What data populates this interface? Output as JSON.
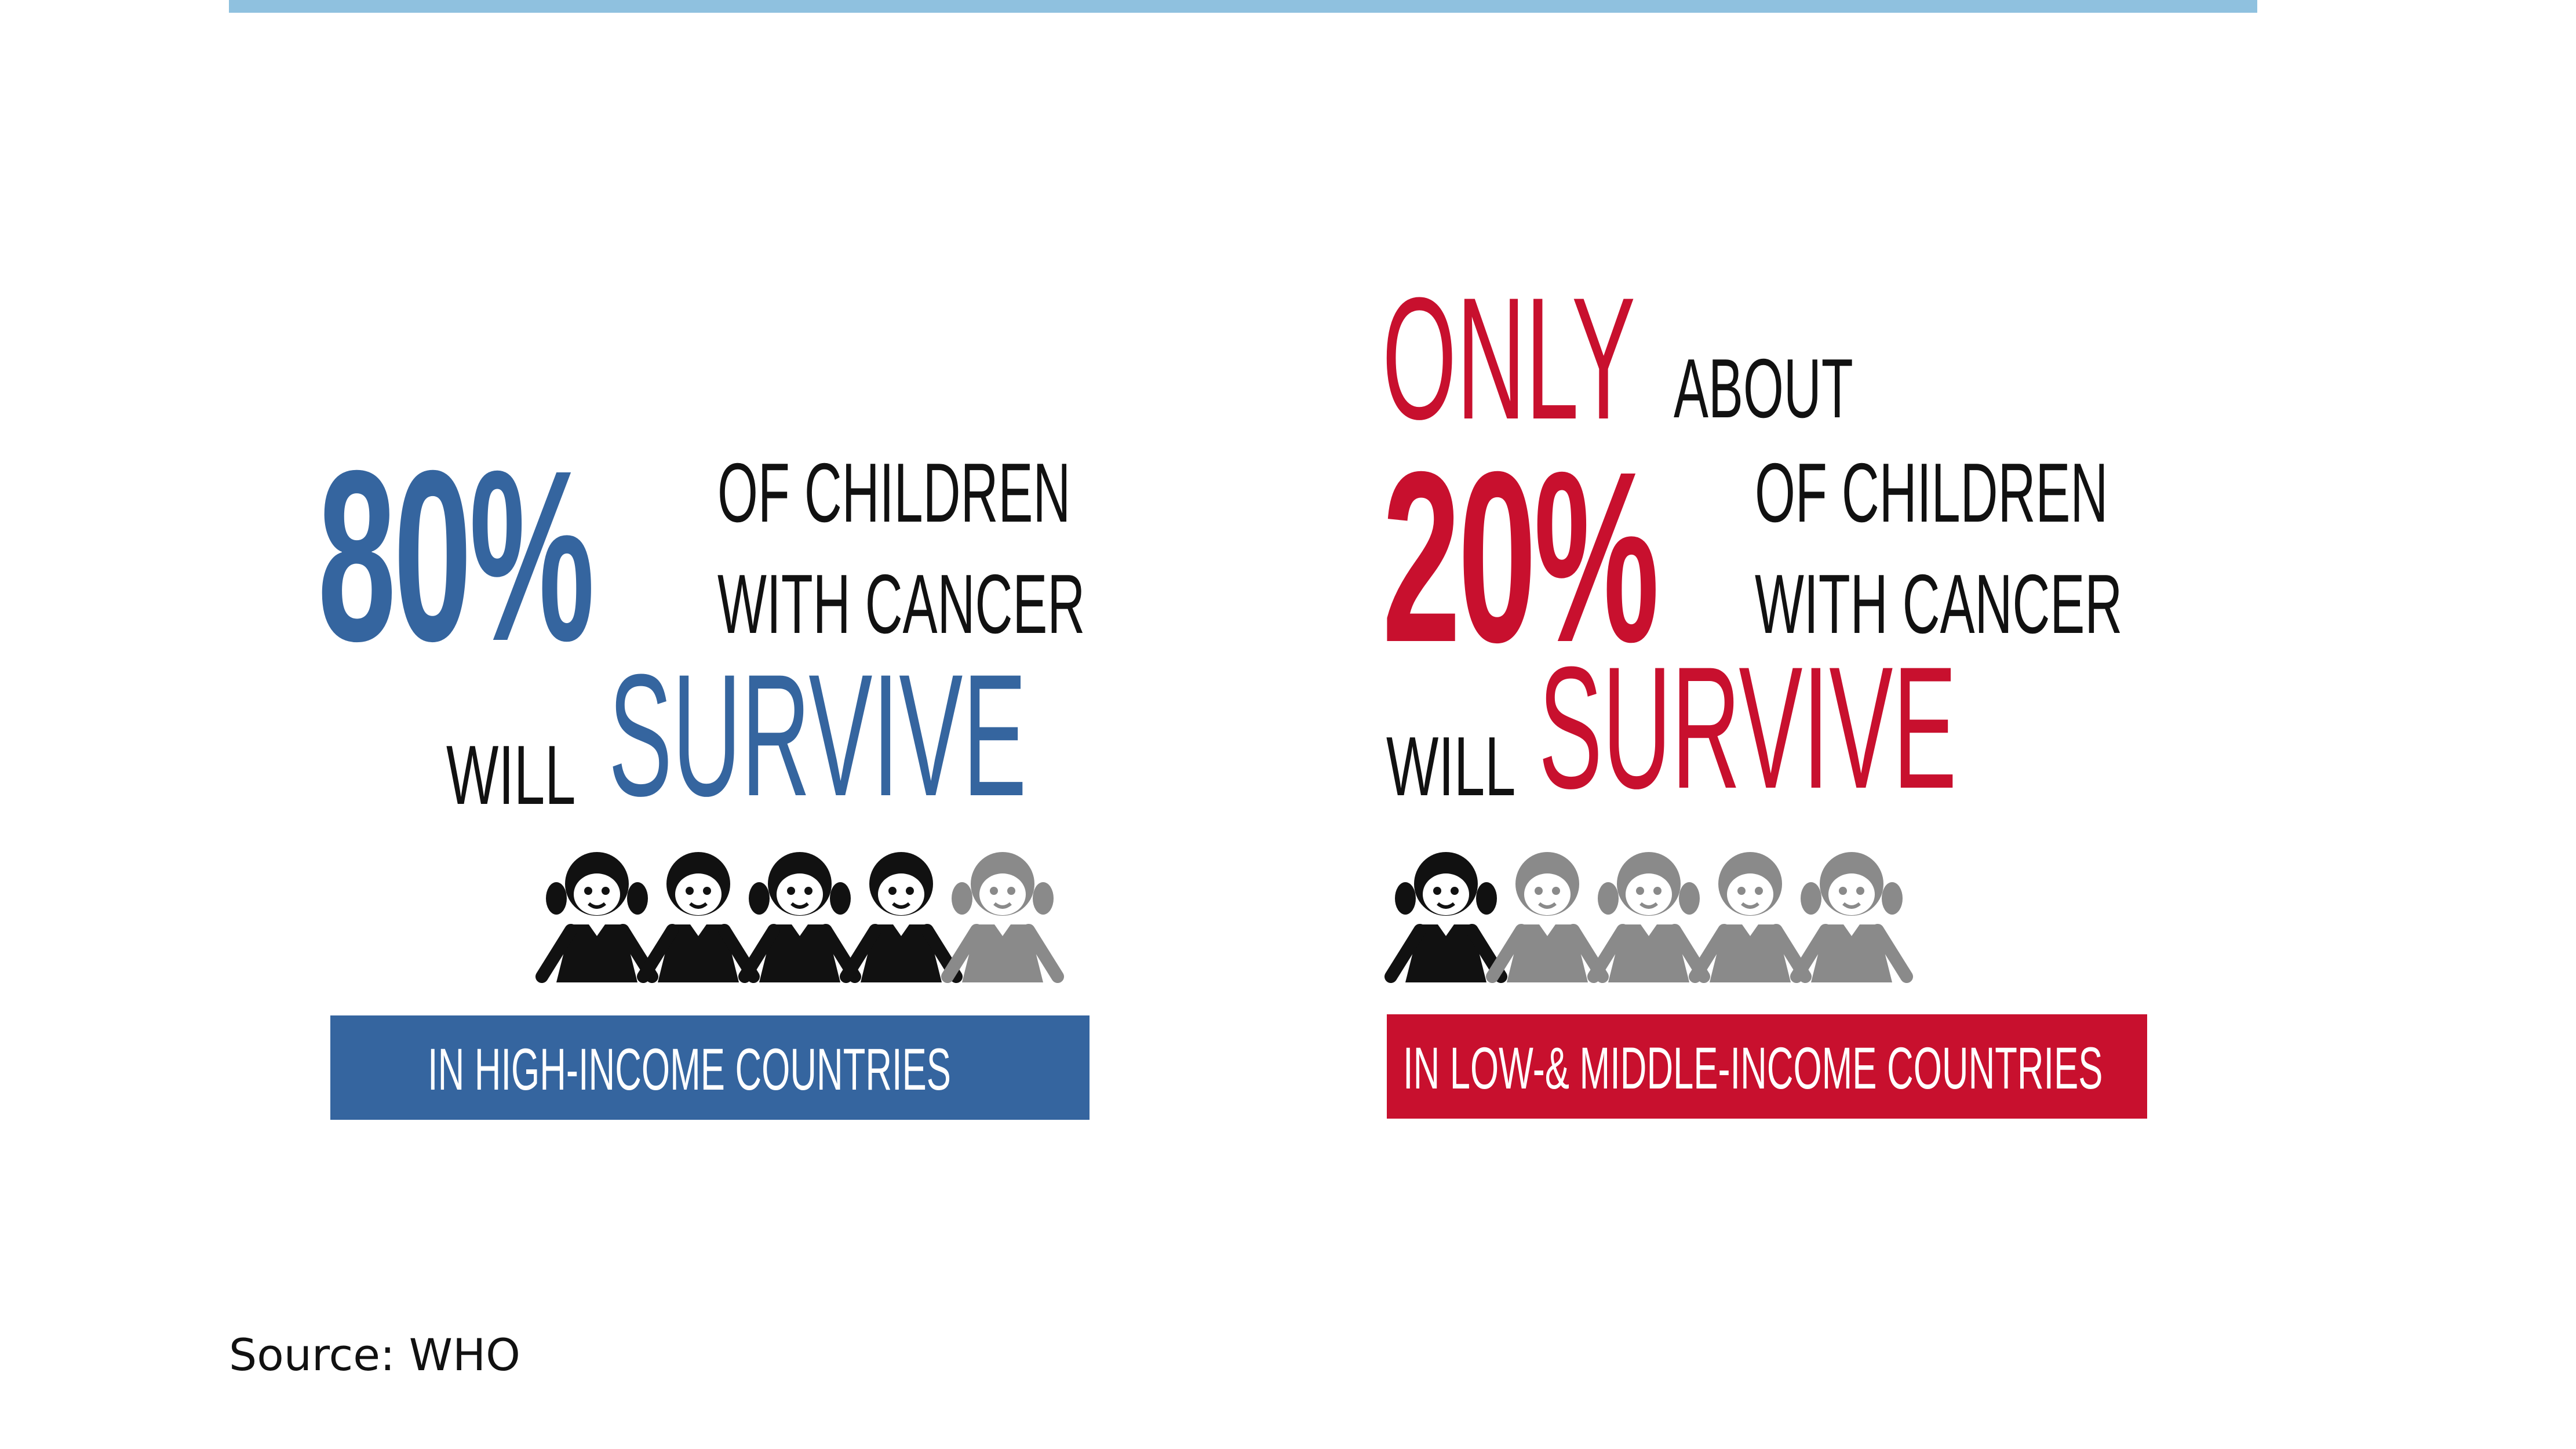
{
  "colors": {
    "top_bar": "#8fc1df",
    "high_income_blue": "#35659f",
    "low_income_red": "#c8102e",
    "survivor_icon": "#111111",
    "non_survivor_icon": "#8a8a8a"
  },
  "left_panel": {
    "percent": "80%",
    "line1": "OF CHILDREN",
    "line2": "WITH CANCER",
    "will": "WILL",
    "survive": "SURVIVE",
    "banner": "IN HIGH-INCOME COUNTRIES",
    "survivors_shown": 4,
    "children_shown": 5
  },
  "right_panel": {
    "only": "ONLY",
    "about": "ABOUT",
    "percent": "20%",
    "line1": "OF CHILDREN",
    "line2": "WITH CANCER",
    "will": "WILL",
    "survive": "SURVIVE",
    "banner": "IN LOW-& MIDDLE-INCOME COUNTRIES",
    "survivors_shown": 1,
    "children_shown": 5
  },
  "source": "Source: WHO"
}
